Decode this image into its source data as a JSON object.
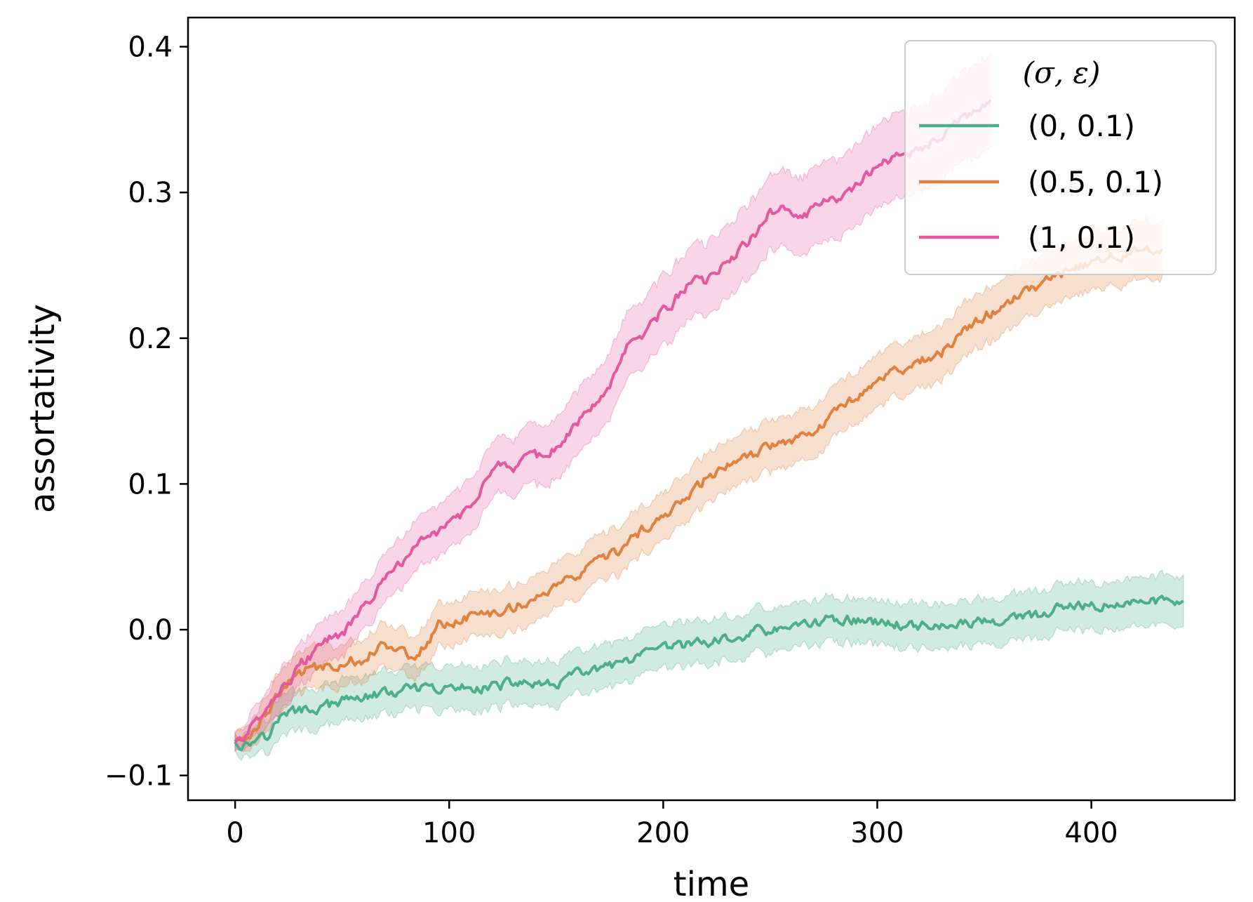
{
  "chart_data": {
    "type": "line",
    "xlabel": "time",
    "ylabel": "assortativity",
    "xlim": [
      -22,
      467
    ],
    "ylim": [
      -0.117,
      0.42
    ],
    "xticks": [
      0,
      100,
      200,
      300,
      400
    ],
    "yticks": [
      -0.1,
      0.0,
      0.1,
      0.2,
      0.3,
      0.4
    ],
    "xtick_labels": [
      "0",
      "100",
      "200",
      "300",
      "400"
    ],
    "ytick_labels": [
      "−0.1",
      "0.0",
      "0.1",
      "0.2",
      "0.3",
      "0.4"
    ],
    "grid": false,
    "legend": {
      "title": "(σ, ε)",
      "placement": "top-right"
    },
    "series": [
      {
        "name": "(0, 0.1)",
        "color": "#4daf8a",
        "band_halfwidth": [
          [
            0,
            0.006
          ],
          [
            20,
            0.014
          ],
          [
            100,
            0.015
          ],
          [
            300,
            0.015
          ],
          [
            443,
            0.017
          ]
        ],
        "points": [
          [
            0,
            -0.077
          ],
          [
            5,
            -0.079
          ],
          [
            10,
            -0.075
          ],
          [
            13,
            -0.068
          ],
          [
            16,
            -0.074
          ],
          [
            19,
            -0.062
          ],
          [
            25,
            -0.057
          ],
          [
            35,
            -0.055
          ],
          [
            45,
            -0.052
          ],
          [
            55,
            -0.047
          ],
          [
            65,
            -0.045
          ],
          [
            75,
            -0.043
          ],
          [
            85,
            -0.041
          ],
          [
            95,
            -0.042
          ],
          [
            105,
            -0.04
          ],
          [
            115,
            -0.039
          ],
          [
            125,
            -0.038
          ],
          [
            135,
            -0.036
          ],
          [
            145,
            -0.04
          ],
          [
            155,
            -0.033
          ],
          [
            165,
            -0.029
          ],
          [
            175,
            -0.026
          ],
          [
            185,
            -0.022
          ],
          [
            195,
            -0.016
          ],
          [
            205,
            -0.012
          ],
          [
            215,
            -0.009
          ],
          [
            225,
            -0.008
          ],
          [
            235,
            -0.006
          ],
          [
            245,
            0.0
          ],
          [
            255,
            -0.001
          ],
          [
            265,
            0.004
          ],
          [
            275,
            0.006
          ],
          [
            285,
            0.008
          ],
          [
            295,
            0.005
          ],
          [
            305,
            0.004
          ],
          [
            315,
            0.004
          ],
          [
            325,
            0.003
          ],
          [
            335,
            0.002
          ],
          [
            345,
            0.005
          ],
          [
            355,
            0.006
          ],
          [
            365,
            0.007
          ],
          [
            375,
            0.01
          ],
          [
            385,
            0.014
          ],
          [
            395,
            0.015
          ],
          [
            405,
            0.016
          ],
          [
            415,
            0.018
          ],
          [
            425,
            0.019
          ],
          [
            435,
            0.02
          ],
          [
            443,
            0.021
          ]
        ]
      },
      {
        "name": "(0.5, 0.1)",
        "color": "#e0813e",
        "band_halfwidth": [
          [
            0,
            0.006
          ],
          [
            20,
            0.014
          ],
          [
            100,
            0.015
          ],
          [
            300,
            0.018
          ],
          [
            433,
            0.02
          ]
        ],
        "points": [
          [
            0,
            -0.077
          ],
          [
            5,
            -0.074
          ],
          [
            10,
            -0.066
          ],
          [
            15,
            -0.055
          ],
          [
            20,
            -0.045
          ],
          [
            25,
            -0.037
          ],
          [
            30,
            -0.03
          ],
          [
            35,
            -0.027
          ],
          [
            40,
            -0.026
          ],
          [
            45,
            -0.024
          ],
          [
            50,
            -0.023
          ],
          [
            55,
            -0.021
          ],
          [
            60,
            -0.02
          ],
          [
            65,
            -0.014
          ],
          [
            70,
            -0.008
          ],
          [
            75,
            -0.013
          ],
          [
            80,
            -0.017
          ],
          [
            85,
            -0.018
          ],
          [
            90,
            -0.008
          ],
          [
            95,
            0.003
          ],
          [
            100,
            0.005
          ],
          [
            110,
            0.009
          ],
          [
            120,
            0.011
          ],
          [
            130,
            0.016
          ],
          [
            140,
            0.021
          ],
          [
            150,
            0.03
          ],
          [
            160,
            0.037
          ],
          [
            170,
            0.046
          ],
          [
            180,
            0.055
          ],
          [
            190,
            0.067
          ],
          [
            200,
            0.077
          ],
          [
            210,
            0.09
          ],
          [
            220,
            0.104
          ],
          [
            230,
            0.113
          ],
          [
            240,
            0.117
          ],
          [
            250,
            0.127
          ],
          [
            260,
            0.131
          ],
          [
            270,
            0.138
          ],
          [
            280,
            0.148
          ],
          [
            290,
            0.16
          ],
          [
            300,
            0.173
          ],
          [
            310,
            0.178
          ],
          [
            320,
            0.184
          ],
          [
            330,
            0.19
          ],
          [
            340,
            0.203
          ],
          [
            350,
            0.215
          ],
          [
            360,
            0.224
          ],
          [
            370,
            0.232
          ],
          [
            380,
            0.24
          ],
          [
            390,
            0.247
          ],
          [
            400,
            0.252
          ],
          [
            410,
            0.256
          ],
          [
            420,
            0.259
          ],
          [
            433,
            0.263
          ]
        ]
      },
      {
        "name": "(1, 0.1)",
        "color": "#e3589e",
        "band_halfwidth": [
          [
            0,
            0.006
          ],
          [
            20,
            0.014
          ],
          [
            100,
            0.018
          ],
          [
            200,
            0.024
          ],
          [
            300,
            0.028
          ],
          [
            353,
            0.032
          ]
        ],
        "points": [
          [
            0,
            -0.077
          ],
          [
            5,
            -0.072
          ],
          [
            10,
            -0.062
          ],
          [
            15,
            -0.05
          ],
          [
            20,
            -0.043
          ],
          [
            25,
            -0.035
          ],
          [
            30,
            -0.025
          ],
          [
            35,
            -0.018
          ],
          [
            40,
            -0.012
          ],
          [
            45,
            -0.006
          ],
          [
            50,
            -0.003
          ],
          [
            55,
            0.005
          ],
          [
            60,
            0.015
          ],
          [
            65,
            0.025
          ],
          [
            70,
            0.033
          ],
          [
            75,
            0.043
          ],
          [
            80,
            0.05
          ],
          [
            85,
            0.057
          ],
          [
            90,
            0.063
          ],
          [
            95,
            0.068
          ],
          [
            100,
            0.072
          ],
          [
            105,
            0.078
          ],
          [
            110,
            0.086
          ],
          [
            115,
            0.098
          ],
          [
            120,
            0.108
          ],
          [
            125,
            0.112
          ],
          [
            130,
            0.104
          ],
          [
            135,
            0.115
          ],
          [
            140,
            0.119
          ],
          [
            145,
            0.118
          ],
          [
            150,
            0.125
          ],
          [
            155,
            0.133
          ],
          [
            160,
            0.143
          ],
          [
            165,
            0.152
          ],
          [
            170,
            0.16
          ],
          [
            175,
            0.17
          ],
          [
            180,
            0.185
          ],
          [
            185,
            0.198
          ],
          [
            190,
            0.203
          ],
          [
            195,
            0.21
          ],
          [
            200,
            0.219
          ],
          [
            205,
            0.226
          ],
          [
            210,
            0.234
          ],
          [
            215,
            0.24
          ],
          [
            220,
            0.237
          ],
          [
            225,
            0.245
          ],
          [
            230,
            0.252
          ],
          [
            235,
            0.26
          ],
          [
            240,
            0.266
          ],
          [
            245,
            0.275
          ],
          [
            250,
            0.286
          ],
          [
            255,
            0.288
          ],
          [
            260,
            0.285
          ],
          [
            265,
            0.282
          ],
          [
            270,
            0.289
          ],
          [
            275,
            0.295
          ],
          [
            280,
            0.292
          ],
          [
            285,
            0.298
          ],
          [
            290,
            0.306
          ],
          [
            295,
            0.312
          ],
          [
            300,
            0.316
          ],
          [
            305,
            0.322
          ],
          [
            310,
            0.324
          ],
          [
            315,
            0.326
          ],
          [
            320,
            0.33
          ],
          [
            325,
            0.334
          ],
          [
            330,
            0.338
          ],
          [
            335,
            0.343
          ],
          [
            340,
            0.35
          ],
          [
            345,
            0.356
          ],
          [
            353,
            0.362
          ]
        ]
      }
    ]
  }
}
